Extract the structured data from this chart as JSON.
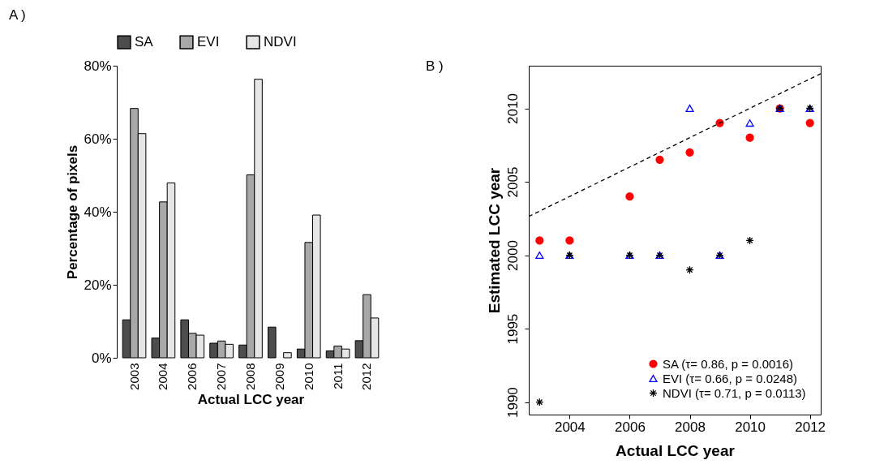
{
  "chart_data": [
    {
      "type": "bar",
      "title": "A )",
      "xlabel": "Actual LCC year",
      "ylabel": "Percentage of pixels",
      "categories": [
        "2003",
        "2004",
        "2006",
        "2007",
        "2008",
        "2009",
        "2010",
        "2011",
        "2012"
      ],
      "series": [
        {
          "name": "SA",
          "color": "#4d4d4d",
          "values": [
            10.4,
            5.4,
            10.4,
            4.0,
            3.5,
            8.4,
            2.4,
            1.9,
            4.7
          ]
        },
        {
          "name": "EVI",
          "color": "#a8a8a8",
          "values": [
            68.3,
            42.7,
            6.7,
            4.6,
            50.1,
            0,
            31.6,
            3.2,
            17.3
          ]
        },
        {
          "name": "NDVI",
          "color": "#e6e6e6",
          "values": [
            61.4,
            47.9,
            6.2,
            3.7,
            76.3,
            1.4,
            39.1,
            2.4,
            10.9
          ]
        }
      ],
      "ylim": [
        0,
        80
      ],
      "yticks": [
        {
          "value": 0,
          "label": "0%"
        },
        {
          "value": 20,
          "label": "20%"
        },
        {
          "value": 40,
          "label": "40%"
        },
        {
          "value": 60,
          "label": "60%"
        },
        {
          "value": 80,
          "label": "80%"
        }
      ],
      "grid": false,
      "legend": "top"
    },
    {
      "type": "scatter",
      "title": "B )",
      "xlabel": "Actual LCC year",
      "ylabel": "Estimated LCC year",
      "x": [
        2003,
        2004,
        2006,
        2007,
        2008,
        2009,
        2010,
        2011,
        2012
      ],
      "series": [
        {
          "name": "SA (τ= 0.86, p = 0.0016)",
          "color": "#ff0000",
          "marker": "circle",
          "values": [
            2001,
            2001,
            2004,
            2006.5,
            2007,
            2009,
            2008,
            2010,
            2009
          ]
        },
        {
          "name": "EVI (τ= 0.66, p = 0.0248)",
          "color": "#0000ff",
          "marker": "triangle",
          "values": [
            2000,
            2000,
            2000,
            2000,
            2010,
            2000,
            2009,
            2010,
            2010
          ]
        },
        {
          "name": "NDVI (τ= 0.71, p = 0.0113)",
          "color": "#000000",
          "marker": "cross",
          "values": [
            1990,
            2000,
            2000,
            2000,
            1999,
            2000,
            2001,
            2010,
            2010
          ]
        },
        {
          "type": "line",
          "color": "#000000",
          "line_style": "dashed",
          "x": [
            2002.64,
            2012.36
          ],
          "values": [
            2002.64,
            2012.36
          ]
        }
      ],
      "xlim": [
        2002.64,
        2012.36
      ],
      "xticks": [
        2004,
        2006,
        2008,
        2010,
        2012
      ],
      "ylim": [
        1989.15,
        2012.9
      ],
      "yticks": [
        1990,
        1995,
        2000,
        2005,
        2010
      ],
      "grid": false,
      "legend": "bottom right"
    }
  ]
}
